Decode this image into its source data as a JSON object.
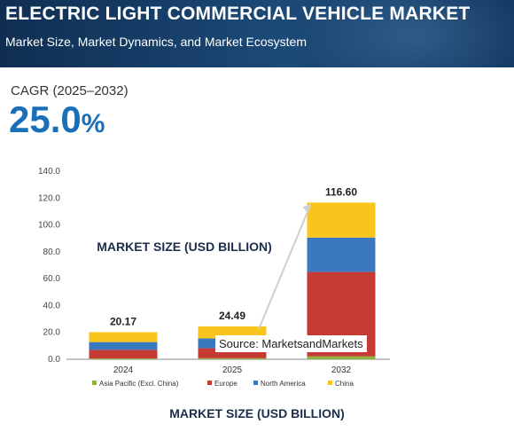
{
  "header": {
    "title": "ELECTRIC LIGHT COMMERCIAL VEHICLE MARKET",
    "subtitle": "Market Size, Market Dynamics, and Market Ecosystem"
  },
  "cagr": {
    "label": "CAGR (2025–2032)",
    "value": "25.0",
    "unit": "%"
  },
  "source": "Source: MarketsandMarkets",
  "bottom_label": "MARKET SIZE (USD BILLION)",
  "colors": {
    "asia_pacific": "#8db33a",
    "europe": "#c53a32",
    "north_america": "#3a78c0",
    "china": "#f8c51d",
    "accent": "#1a6fb8"
  },
  "chart_data": {
    "type": "bar",
    "stacked": true,
    "title": "MARKET SIZE (USD BILLION)",
    "categories": [
      "2024",
      "2025",
      "2032"
    ],
    "totals": [
      20.17,
      24.49,
      116.6
    ],
    "total_labels": [
      "20.17",
      "24.49",
      "116.60"
    ],
    "series": [
      {
        "name": "Asia Pacific (Excl. China)",
        "color": "#8db33a",
        "values": [
          0.6,
          0.8,
          2.2
        ]
      },
      {
        "name": "Europe",
        "color": "#c53a32",
        "values": [
          6.4,
          7.4,
          62.8
        ]
      },
      {
        "name": "North America",
        "color": "#3a78c0",
        "values": [
          5.8,
          7.3,
          25.6
        ]
      },
      {
        "name": "China",
        "color": "#f8c51d",
        "values": [
          7.37,
          8.99,
          26.0
        ]
      }
    ],
    "ylim": [
      0,
      140
    ],
    "yticks": [
      "0.0",
      "20.0",
      "40.0",
      "60.0",
      "80.0",
      "100.0",
      "120.0",
      "140.0"
    ],
    "legend_position": "bottom",
    "grid": false
  }
}
